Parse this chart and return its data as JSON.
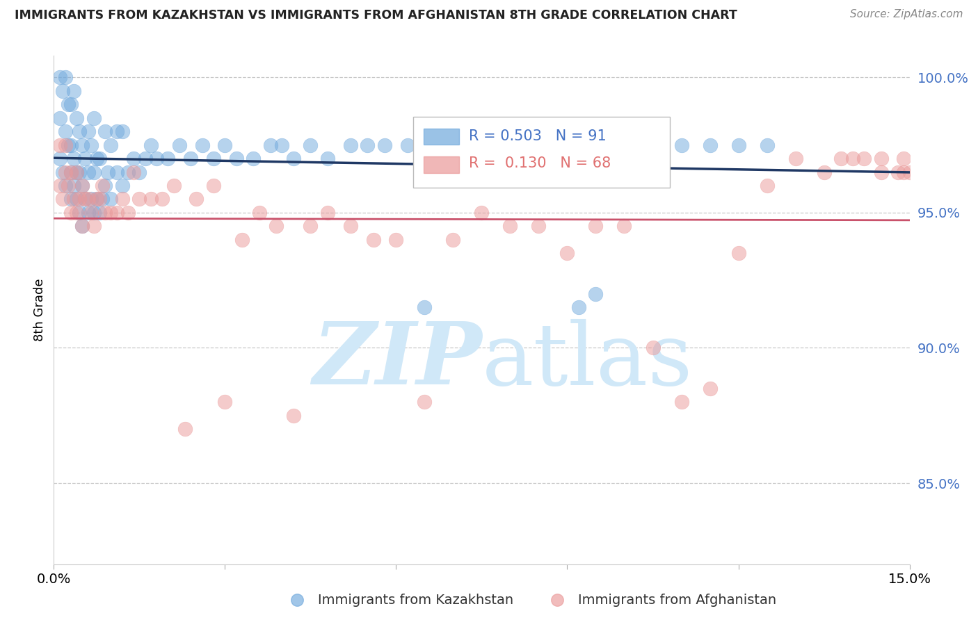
{
  "title": "IMMIGRANTS FROM KAZAKHSTAN VS IMMIGRANTS FROM AFGHANISTAN 8TH GRADE CORRELATION CHART",
  "source": "Source: ZipAtlas.com",
  "ylabel": "8th Grade",
  "y_ticks": [
    85.0,
    90.0,
    95.0,
    100.0
  ],
  "y_tick_labels": [
    "85.0%",
    "90.0%",
    "95.0%",
    "100.0%"
  ],
  "x_min": 0.0,
  "x_max": 15.0,
  "y_min": 82.0,
  "y_max": 100.8,
  "R_kaz": 0.503,
  "N_kaz": 91,
  "R_afg": 0.13,
  "N_afg": 68,
  "color_kaz": "#6fa8dc",
  "color_afg": "#ea9999",
  "line_color_kaz": "#1f3864",
  "line_color_afg": "#c9526b",
  "background": "#ffffff",
  "watermark_color": "#d0e8f8",
  "kaz_x": [
    0.1,
    0.1,
    0.1,
    0.15,
    0.15,
    0.2,
    0.2,
    0.2,
    0.25,
    0.25,
    0.3,
    0.3,
    0.3,
    0.3,
    0.35,
    0.35,
    0.35,
    0.4,
    0.4,
    0.4,
    0.45,
    0.45,
    0.45,
    0.5,
    0.5,
    0.5,
    0.55,
    0.55,
    0.6,
    0.6,
    0.6,
    0.65,
    0.65,
    0.7,
    0.7,
    0.7,
    0.75,
    0.75,
    0.8,
    0.8,
    0.85,
    0.9,
    0.9,
    0.95,
    1.0,
    1.0,
    1.1,
    1.1,
    1.2,
    1.2,
    1.3,
    1.4,
    1.5,
    1.6,
    1.7,
    1.8,
    2.0,
    2.2,
    2.4,
    2.6,
    2.8,
    3.0,
    3.2,
    3.5,
    3.8,
    4.0,
    4.2,
    4.5,
    4.8,
    5.2,
    5.5,
    5.8,
    6.2,
    6.5,
    7.0,
    7.5,
    7.8,
    8.0,
    8.2,
    8.5,
    8.8,
    9.0,
    9.2,
    9.5,
    9.8,
    10.0,
    10.5,
    11.0,
    11.5,
    12.0,
    12.5
  ],
  "kaz_y": [
    97.0,
    98.5,
    100.0,
    96.5,
    99.5,
    96.0,
    98.0,
    100.0,
    97.5,
    99.0,
    95.5,
    96.5,
    97.5,
    99.0,
    96.0,
    97.0,
    99.5,
    95.5,
    96.5,
    98.5,
    95.0,
    96.5,
    98.0,
    94.5,
    96.0,
    97.5,
    95.5,
    97.0,
    95.0,
    96.5,
    98.0,
    95.5,
    97.5,
    95.0,
    96.5,
    98.5,
    95.5,
    97.0,
    95.0,
    97.0,
    95.5,
    96.0,
    98.0,
    96.5,
    95.5,
    97.5,
    96.5,
    98.0,
    96.0,
    98.0,
    96.5,
    97.0,
    96.5,
    97.0,
    97.5,
    97.0,
    97.0,
    97.5,
    97.0,
    97.5,
    97.0,
    97.5,
    97.0,
    97.0,
    97.5,
    97.5,
    97.0,
    97.5,
    97.0,
    97.5,
    97.5,
    97.5,
    97.5,
    91.5,
    97.5,
    97.0,
    97.5,
    97.5,
    97.0,
    97.5,
    97.0,
    97.5,
    91.5,
    92.0,
    97.5,
    97.5,
    97.5,
    97.5,
    97.5,
    97.5,
    97.5
  ],
  "afg_x": [
    0.1,
    0.1,
    0.15,
    0.2,
    0.2,
    0.25,
    0.3,
    0.3,
    0.35,
    0.4,
    0.4,
    0.45,
    0.5,
    0.5,
    0.55,
    0.6,
    0.65,
    0.7,
    0.75,
    0.8,
    0.85,
    0.9,
    1.0,
    1.1,
    1.2,
    1.3,
    1.4,
    1.5,
    1.7,
    1.9,
    2.1,
    2.3,
    2.5,
    2.8,
    3.0,
    3.3,
    3.6,
    3.9,
    4.2,
    4.5,
    4.8,
    5.2,
    5.6,
    6.0,
    6.5,
    7.0,
    7.5,
    8.0,
    8.5,
    9.0,
    9.5,
    10.0,
    10.5,
    11.0,
    11.5,
    12.0,
    12.5,
    13.0,
    13.5,
    14.0,
    14.5,
    14.8,
    14.9,
    15.0,
    14.2,
    13.8,
    14.5,
    14.9
  ],
  "afg_y": [
    96.0,
    97.5,
    95.5,
    96.5,
    97.5,
    96.0,
    95.0,
    96.5,
    95.5,
    95.0,
    96.5,
    95.5,
    94.5,
    96.0,
    95.5,
    95.5,
    95.0,
    94.5,
    95.5,
    95.5,
    96.0,
    95.0,
    95.0,
    95.0,
    95.5,
    95.0,
    96.5,
    95.5,
    95.5,
    95.5,
    96.0,
    87.0,
    95.5,
    96.0,
    88.0,
    94.0,
    95.0,
    94.5,
    87.5,
    94.5,
    95.0,
    94.5,
    94.0,
    94.0,
    88.0,
    94.0,
    95.0,
    94.5,
    94.5,
    93.5,
    94.5,
    94.5,
    90.0,
    88.0,
    88.5,
    93.5,
    96.0,
    97.0,
    96.5,
    97.0,
    97.0,
    96.5,
    97.0,
    96.5,
    97.0,
    97.0,
    96.5,
    96.5
  ]
}
